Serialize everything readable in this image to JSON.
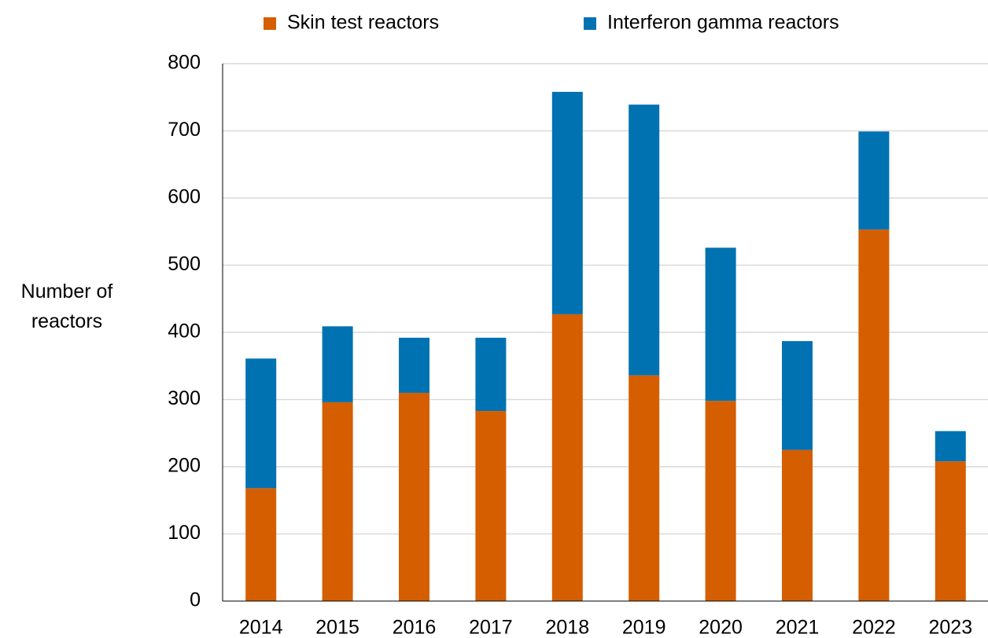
{
  "chart_data": {
    "type": "stacked_bar",
    "y_label": "Number of reactors",
    "categories": [
      "2014",
      "2015",
      "2016",
      "2017",
      "2018",
      "2019",
      "2020",
      "2021",
      "2022",
      "2023"
    ],
    "series": [
      {
        "name": "Skin test reactors",
        "color": "#d55e00",
        "values": [
          168,
          296,
          310,
          283,
          427,
          336,
          298,
          225,
          553,
          208
        ]
      },
      {
        "name": "Interferon gamma reactors",
        "color": "#0072b2",
        "values": [
          193,
          113,
          82,
          109,
          331,
          403,
          228,
          162,
          146,
          45
        ]
      }
    ],
    "ylim": [
      0,
      800
    ],
    "yticks": [
      0,
      100,
      200,
      300,
      400,
      500,
      600,
      700,
      800
    ],
    "grid": true
  }
}
